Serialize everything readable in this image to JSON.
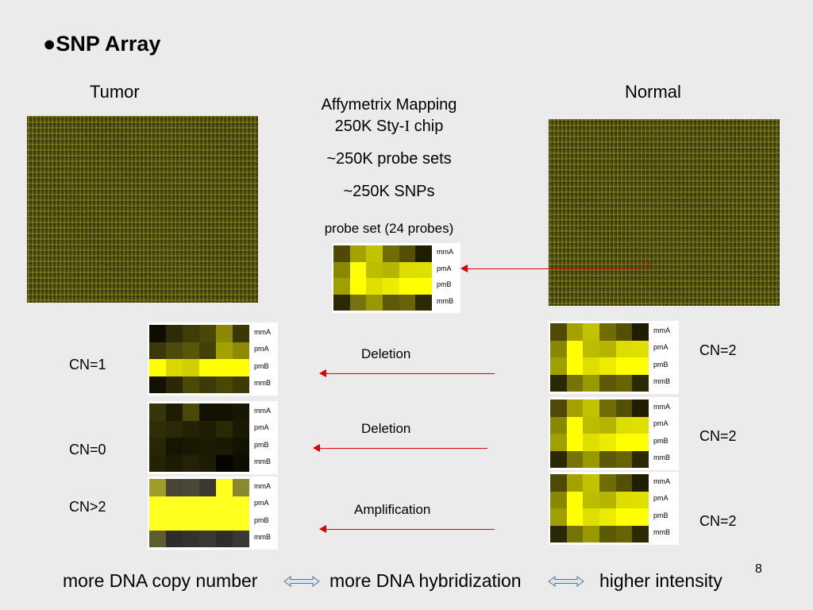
{
  "slide": {
    "bullet": "●",
    "title": "SNP Array",
    "tumor_label": "Tumor",
    "normal_label": "Normal",
    "chip_line1": "Affymetrix Mapping",
    "chip_line2a": "250K Sty-",
    "chip_line2b": "I",
    "chip_line2c": " chip",
    "probe_sets": "~250K probe sets",
    "snps": "~250K SNPs",
    "probe_set_caption": "probe set (24 probes)",
    "page_number": "8",
    "red_marker": "▢"
  },
  "row_labels": [
    "mmA",
    "pmA",
    "pmB",
    "mmB"
  ],
  "colors": {
    "arrow": "#d80000",
    "background": "#ebebeb"
  },
  "reference_probe": {
    "cells": [
      [
        "#4e4a06",
        "#a5a200",
        "#c2c300",
        "#6f6c05",
        "#535006",
        "#1f1e03"
      ],
      [
        "#8a8800",
        "#ffff00",
        "#bdbd00",
        "#b5b500",
        "#dddd00",
        "#e0e000"
      ],
      [
        "#a09f00",
        "#ffff00",
        "#dede00",
        "#ecec00",
        "#ffff00",
        "#ffff00"
      ],
      [
        "#2b2905",
        "#76730b",
        "#9a9800",
        "#5c5a08",
        "#676406",
        "#2b2a05"
      ]
    ]
  },
  "tumor_panels": [
    {
      "cn": "CN=1",
      "event": "Deletion",
      "cells": [
        [
          "#0e0d02",
          "#2d2c05",
          "#3e3c07",
          "#4a4806",
          "#8c8a04",
          "#3a3806"
        ],
        [
          "#39380a",
          "#4d4b0a",
          "#585608",
          "#424006",
          "#a3a100",
          "#8c8a06"
        ],
        [
          "#ffff00",
          "#d9d900",
          "#d0d000",
          "#ffff00",
          "#ffff00",
          "#ffff00"
        ],
        [
          "#131202",
          "#2a2905",
          "#4b4906",
          "#3c3a06",
          "#4a4806",
          "#3c3a06"
        ]
      ]
    },
    {
      "cn": "CN=0",
      "event": "Deletion",
      "cells": [
        [
          "#36340a",
          "#1e1d04",
          "#4a4806",
          "#121102",
          "#121102",
          "#181704"
        ],
        [
          "#2e2d08",
          "#2a2906",
          "#232204",
          "#1e1d04",
          "#2a2906",
          "#1a1904"
        ],
        [
          "#272605",
          "#161503",
          "#191804",
          "#1c1b04",
          "#1a1904",
          "#141302"
        ],
        [
          "#232204",
          "#1c1b04",
          "#232204",
          "#1c1b04",
          "#050500",
          "#0e0d02"
        ]
      ]
    },
    {
      "cn": "CN>2",
      "event": "Amplification",
      "cells": [
        [
          "#a09c2c",
          "#474535",
          "#4a4838",
          "#3a3830",
          "#ffff20",
          "#8a8830"
        ],
        [
          "#ffff20",
          "#ffff20",
          "#ffff20",
          "#ffff20",
          "#ffff20",
          "#ffff20"
        ],
        [
          "#ffff20",
          "#ffff20",
          "#ffff20",
          "#ffff20",
          "#ffff20",
          "#ffff20"
        ],
        [
          "#5e5c30",
          "#2e2d2c",
          "#333230",
          "#3a3832",
          "#2e2d2c",
          "#3a3832"
        ]
      ]
    }
  ],
  "normal_panels": [
    {
      "cn": "CN=2",
      "cells": [
        [
          "#4e4a06",
          "#a5a200",
          "#c2c300",
          "#6f6c05",
          "#535006",
          "#1f1e03"
        ],
        [
          "#8a8800",
          "#ffff00",
          "#bdbd00",
          "#b5b500",
          "#dddd00",
          "#e0e000"
        ],
        [
          "#a09f00",
          "#ffff00",
          "#dede00",
          "#ecec00",
          "#ffff00",
          "#ffff00"
        ],
        [
          "#2b2905",
          "#76730b",
          "#9a9800",
          "#5c5a08",
          "#676406",
          "#2b2a05"
        ]
      ]
    },
    {
      "cn": "CN=2",
      "cells": [
        [
          "#4e4a06",
          "#a5a200",
          "#c2c300",
          "#6f6c05",
          "#535006",
          "#1f1e03"
        ],
        [
          "#8a8800",
          "#ffff00",
          "#bdbd00",
          "#b5b500",
          "#dddd00",
          "#e0e000"
        ],
        [
          "#a09f00",
          "#ffff00",
          "#dede00",
          "#ecec00",
          "#ffff00",
          "#ffff00"
        ],
        [
          "#2b2905",
          "#76730b",
          "#9a9800",
          "#5c5a08",
          "#676406",
          "#2b2a05"
        ]
      ]
    },
    {
      "cn": "CN=2",
      "cells": [
        [
          "#4e4a06",
          "#a5a200",
          "#c2c300",
          "#6f6c05",
          "#535006",
          "#1f1e03"
        ],
        [
          "#8a8800",
          "#ffff00",
          "#bdbd00",
          "#b5b500",
          "#dddd00",
          "#e0e000"
        ],
        [
          "#a09f00",
          "#ffff00",
          "#dede00",
          "#ecec00",
          "#ffff00",
          "#ffff00"
        ],
        [
          "#2b2905",
          "#76730b",
          "#9a9800",
          "#5c5a08",
          "#676406",
          "#2b2a05"
        ]
      ]
    }
  ],
  "bottom": {
    "left": "more DNA copy number",
    "middle": "more DNA hybridization",
    "right": "higher intensity"
  }
}
